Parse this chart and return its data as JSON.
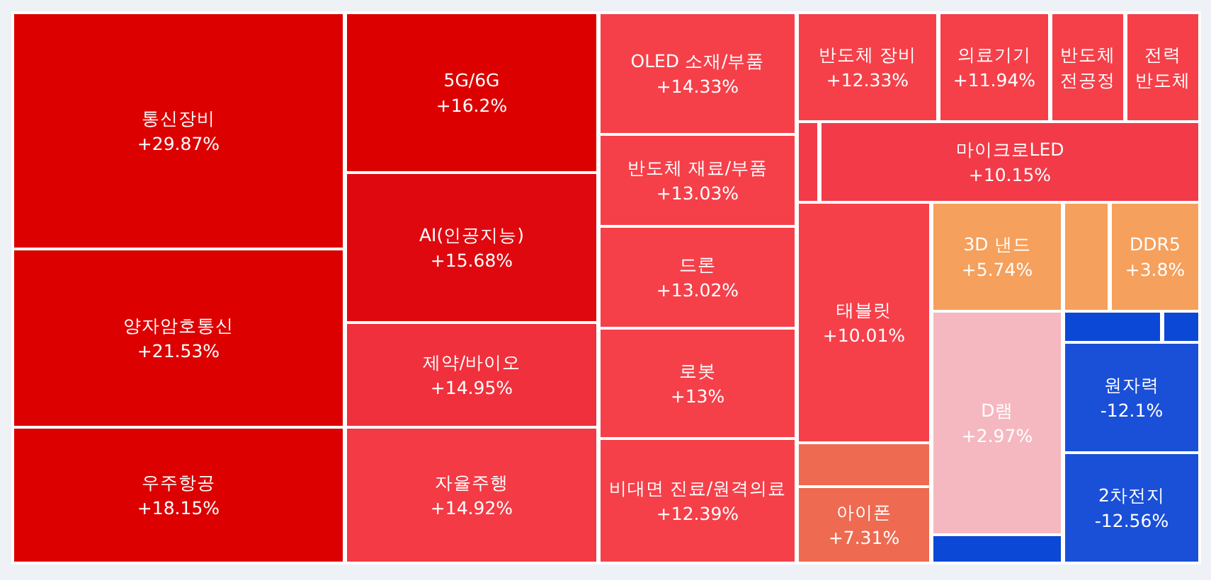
{
  "chart_data": {
    "type": "other",
    "categories": [
      "통신장비",
      "양자암호통신",
      "우주항공",
      "5G/6G",
      "AI(인공지능)",
      "제약/바이오",
      "자율주행",
      "OLED 소재/부품",
      "반도체 재료/부품",
      "드론",
      "로봇",
      "비대면 진료/원격의료",
      "반도체 장비",
      "의료기기",
      "반도체 전공정",
      "전력 반도체",
      null,
      "마이크로LED",
      "태블릿",
      null,
      "아이폰",
      "3D 낸드",
      null,
      "DDR5",
      "D램",
      null,
      null,
      null,
      "원자력",
      "2차전지"
    ],
    "values": [
      29.87,
      21.53,
      18.15,
      16.2,
      15.68,
      14.95,
      14.92,
      14.33,
      13.03,
      13.02,
      13,
      12.39,
      12.33,
      11.94,
      null,
      null,
      null,
      10.15,
      10.01,
      null,
      7.31,
      5.74,
      null,
      3.8,
      2.97,
      null,
      null,
      null,
      -12.1,
      -12.56
    ],
    "value_labels": [
      "+29.87%",
      "+21.53%",
      "+18.15%",
      "+16.2%",
      "+15.68%",
      "+14.95%",
      "+14.92%",
      "+14.33%",
      "+13.03%",
      "+13.02%",
      "+13%",
      "+12.39%",
      "+12.33%",
      "+11.94%",
      null,
      null,
      null,
      "+10.15%",
      "+10.01%",
      null,
      "+7.31%",
      "+5.74%",
      null,
      "+3.8%",
      "+2.97%",
      null,
      null,
      null,
      "-12.1%",
      "-12.56%"
    ],
    "colors": [
      "#dc0000",
      "#dc0000",
      "#dc0000",
      "#dc0000",
      "#e0080f",
      "#f0303c",
      "#f33a45",
      "#f5404a",
      "#f5404a",
      "#f5404a",
      "#f5404a",
      "#f5404a",
      "#f5404a",
      "#f5404a",
      "#f5404a",
      "#f5404a",
      "#f23a48",
      "#f23a48",
      "#f5404a",
      "#ee6a50",
      "#ee6a50",
      "#f5a05c",
      "#f5a05c",
      "#f5a05c",
      "#f5b8c0",
      "#0b48d6",
      "#0b48d6",
      "#0b48d6",
      "#1a4fd8",
      "#1a4fd8"
    ]
  }
}
